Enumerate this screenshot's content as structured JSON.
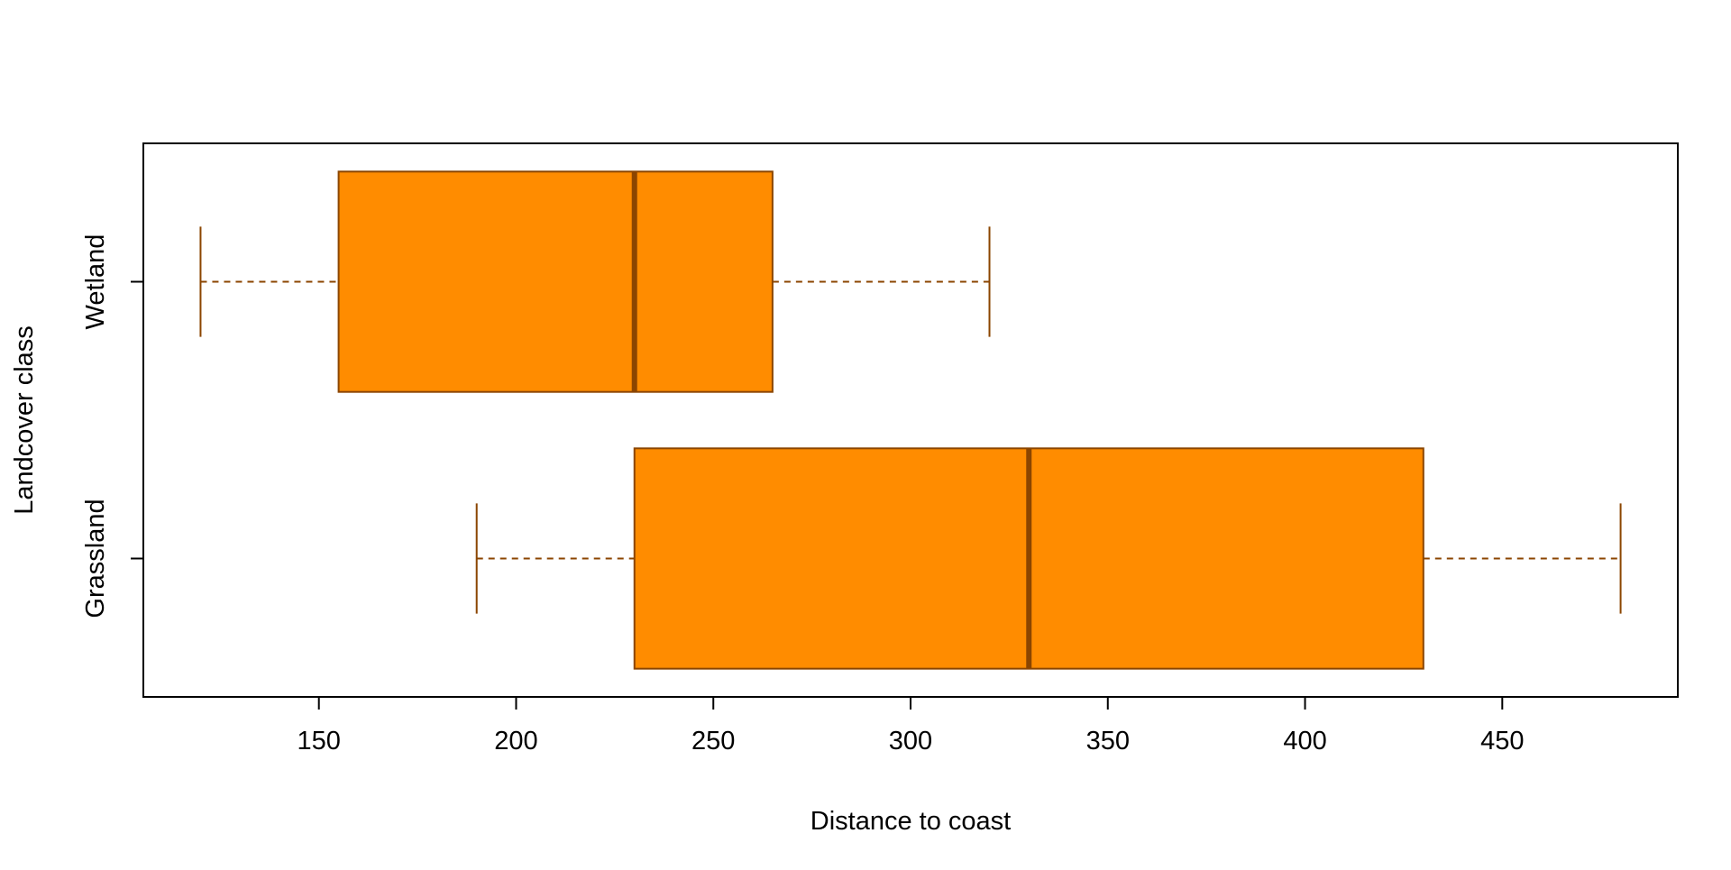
{
  "chart_data": {
    "type": "boxplot",
    "orientation": "horizontal",
    "title": "",
    "xlabel": "Distance to coast",
    "ylabel": "Landcover class",
    "categories": [
      "Grassland",
      "Wetland"
    ],
    "boxes": [
      {
        "category": "Grassland",
        "min": 190,
        "q1": 230,
        "median": 330,
        "q3": 430,
        "max": 480
      },
      {
        "category": "Wetland",
        "min": 120,
        "q1": 155,
        "median": 230,
        "q3": 265,
        "max": 320
      }
    ],
    "xticks": [
      150,
      200,
      250,
      300,
      350,
      400,
      450
    ],
    "xlim": [
      105.5,
      494.5
    ],
    "grid": false,
    "colors": {
      "box_fill": "#FF8C00",
      "box_border": "#8B4500"
    }
  }
}
